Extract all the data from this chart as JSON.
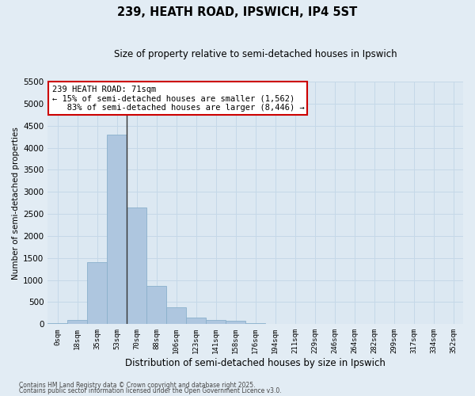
{
  "title1": "239, HEATH ROAD, IPSWICH, IP4 5ST",
  "title2": "Size of property relative to semi-detached houses in Ipswich",
  "xlabel": "Distribution of semi-detached houses by size in Ipswich",
  "ylabel": "Number of semi-detached properties",
  "footnote1": "Contains HM Land Registry data © Crown copyright and database right 2025.",
  "footnote2": "Contains public sector information licensed under the Open Government Licence v3.0.",
  "bar_labels": [
    "0sqm",
    "18sqm",
    "35sqm",
    "53sqm",
    "70sqm",
    "88sqm",
    "106sqm",
    "123sqm",
    "141sqm",
    "158sqm",
    "176sqm",
    "194sqm",
    "211sqm",
    "229sqm",
    "246sqm",
    "264sqm",
    "282sqm",
    "299sqm",
    "317sqm",
    "334sqm",
    "352sqm"
  ],
  "bar_values": [
    20,
    100,
    1400,
    4300,
    2650,
    870,
    390,
    150,
    100,
    70,
    25,
    0,
    0,
    0,
    0,
    0,
    0,
    0,
    0,
    0,
    0
  ],
  "bar_color": "#aec6df",
  "bar_edge_color": "#8ab0cc",
  "vertical_line_x": 3.5,
  "annotation_text": "239 HEATH ROAD: 71sqm\n← 15% of semi-detached houses are smaller (1,562)\n   83% of semi-detached houses are larger (8,446) →",
  "annotation_box_facecolor": "#ffffff",
  "annotation_box_edgecolor": "#cc0000",
  "ylim": [
    0,
    5500
  ],
  "yticks": [
    0,
    500,
    1000,
    1500,
    2000,
    2500,
    3000,
    3500,
    4000,
    4500,
    5000,
    5500
  ],
  "grid_color": "#c5d8e8",
  "fig_facecolor": "#e2ecf4",
  "ax_facecolor": "#dce8f2"
}
